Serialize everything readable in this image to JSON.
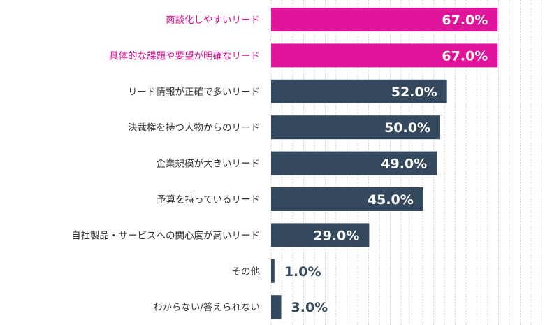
{
  "chart_data": {
    "type": "bar",
    "orientation": "horizontal",
    "categories": [
      "商談化しやすいリード",
      "具体的な課題や要望が明確なリード",
      "リード情報が正確で多いリード",
      "決裁権を持つ人物からのリード",
      "企業規模が大きいリード",
      "予算を持っているリード",
      "自社製品・サービスへの関心度が高いリード",
      "その他",
      "わからない/答えられない"
    ],
    "values": [
      67.0,
      67.0,
      52.0,
      50.0,
      49.0,
      45.0,
      29.0,
      1.0,
      3.0
    ],
    "value_labels": [
      "67.0%",
      "67.0%",
      "52.0%",
      "50.0%",
      "49.0%",
      "45.0%",
      "29.0%",
      "1.0%",
      "3.0%"
    ],
    "highlighted": [
      true,
      true,
      false,
      false,
      false,
      false,
      false,
      false,
      false
    ],
    "xlim": [
      0,
      75
    ],
    "grid": true,
    "title": "",
    "xlabel": "",
    "ylabel": ""
  },
  "colors": {
    "highlight": "#e0149a",
    "bar": "#34495e",
    "label_default": "#333333",
    "value_on_bar": "#ffffff",
    "grid": "#c8c8c8"
  }
}
